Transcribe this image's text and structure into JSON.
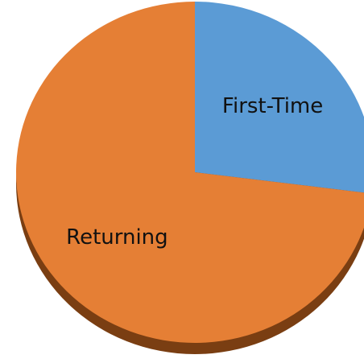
{
  "chart_data": {
    "type": "pie",
    "categories": [
      "First-Time",
      "Returning"
    ],
    "values": [
      27,
      73
    ],
    "colors": [
      "#5b9bd5",
      "#e57f35"
    ]
  }
}
